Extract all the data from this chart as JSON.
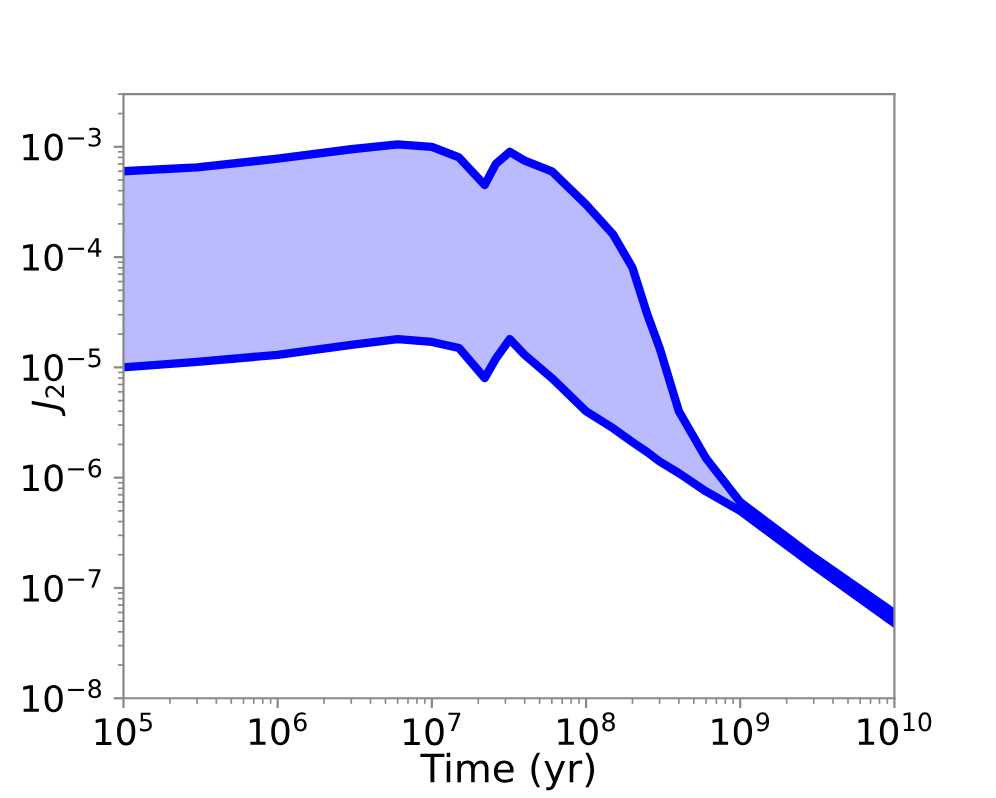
{
  "chart_data": {
    "type": "line",
    "xlabel": "Time (yr)",
    "ylabel": "J$_{2}$",
    "log": "xy",
    "grid": false,
    "legend": false,
    "marker": "none",
    "line_style": "solid",
    "xlim": [
      100000,
      10000000000
    ],
    "ylim": [
      1e-08,
      0.003
    ],
    "xticks": [
      {
        "value": 100000,
        "label": "10$^{5}$"
      },
      {
        "value": 1000000,
        "label": "10$^{6}$"
      },
      {
        "value": 10000000,
        "label": "10$^{7}$"
      },
      {
        "value": 100000000,
        "label": "10$^{8}$"
      },
      {
        "value": 1000000000,
        "label": "10$^{9}$"
      },
      {
        "value": 10000000000,
        "label": "10$^{10}$"
      }
    ],
    "yticks": [
      {
        "value": 1e-08,
        "label": "10$^{−8}$"
      },
      {
        "value": 1e-07,
        "label": "10$^{−7}$"
      },
      {
        "value": 1e-06,
        "label": "10$^{−6}$"
      },
      {
        "value": 1e-05,
        "label": "10$^{−5}$"
      },
      {
        "value": 0.0001,
        "label": "10$^{−4}$"
      },
      {
        "value": 0.001,
        "label": "10$^{−3}$"
      }
    ],
    "x": [
      100000,
      300000,
      1000000,
      3000000,
      6000000,
      10000000,
      15000000,
      22000000,
      26000000,
      32000000,
      40000000,
      60000000,
      100000000,
      150000000,
      200000000,
      250000000,
      300000000,
      400000000,
      600000000,
      1000000000,
      3000000000,
      10000000000
    ],
    "series": [
      {
        "color": "#0000ff",
        "values": [
          0.0006,
          0.00065,
          0.00078,
          0.00095,
          0.00105,
          0.001,
          0.0008,
          0.00045,
          0.0007,
          0.0009,
          0.00075,
          0.0006,
          0.0003,
          0.00016,
          8e-05,
          3e-05,
          1.5e-05,
          4e-06,
          1.5e-06,
          6e-07,
          1.9e-07,
          5.9e-08
        ],
        "lower": [
          1e-05,
          1.12e-05,
          1.3e-05,
          1.6e-05,
          1.8e-05,
          1.7e-05,
          1.5e-05,
          8e-06,
          1.2e-05,
          1.8e-05,
          1.3e-05,
          8e-06,
          4e-06,
          2.8e-06,
          2.1e-06,
          1.7e-06,
          1.4e-06,
          1.1e-06,
          7.5e-07,
          5e-07,
          1.6e-07,
          4.8e-08
        ],
        "upper": [
          0.0006,
          0.00065,
          0.00078,
          0.00095,
          0.00105,
          0.001,
          0.0008,
          0.00045,
          0.0007,
          0.0009,
          0.00075,
          0.0006,
          0.0003,
          0.00016,
          8e-05,
          3e-05,
          1.5e-05,
          4e-06,
          1.5e-06,
          6e-07,
          1.9e-07,
          5.9e-08
        ]
      },
      {
        "color": "#0000ff",
        "values": [
          1e-05,
          1.12e-05,
          1.3e-05,
          1.6e-05,
          1.8e-05,
          1.7e-05,
          1.5e-05,
          8e-06,
          1.2e-05,
          1.8e-05,
          1.3e-05,
          8e-06,
          4e-06,
          2.8e-06,
          2.1e-06,
          1.7e-06,
          1.4e-06,
          1.1e-06,
          7.5e-07,
          5e-07,
          1.6e-07,
          4.8e-08
        ]
      }
    ]
  }
}
